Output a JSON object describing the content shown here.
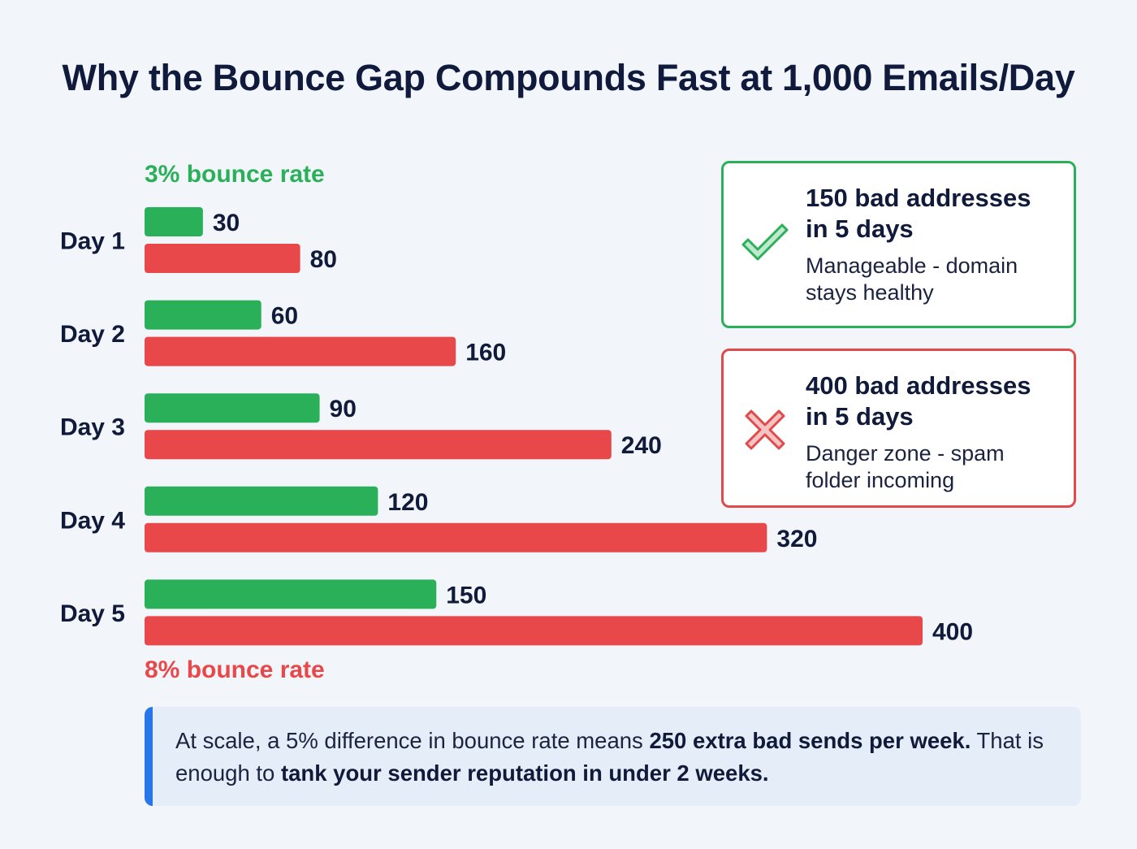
{
  "title": "Why the Bounce Gap Compounds Fast at 1,000 Emails/Day",
  "chart_data": {
    "type": "bar",
    "orientation": "horizontal",
    "categories": [
      "Day 1",
      "Day 2",
      "Day 3",
      "Day 4",
      "Day 5"
    ],
    "series": [
      {
        "name": "3% bounce rate",
        "color": "#2bb05a",
        "values": [
          30,
          60,
          90,
          120,
          150
        ]
      },
      {
        "name": "8% bounce rate",
        "color": "#e8484a",
        "values": [
          80,
          160,
          240,
          320,
          400
        ]
      }
    ],
    "xlim": [
      0,
      400
    ],
    "grid": false,
    "data_labels": true
  },
  "cards": [
    {
      "headline_1": "150 bad addresses",
      "headline_2": "in 5 days",
      "sub_1": "Manageable - domain",
      "sub_2": "stays healthy",
      "icon": "check-icon",
      "color": "#2bb05a"
    },
    {
      "headline_1": "400 bad addresses",
      "headline_2": "in 5 days",
      "sub_1": "Danger zone - spam",
      "sub_2": "folder incoming",
      "icon": "x-icon",
      "color": "#e04a4a"
    }
  ],
  "callout": {
    "part1": "At scale, a 5% difference in bounce rate means ",
    "bold1": "250 extra bad sends per week.",
    "part2": " That is enough to ",
    "bold2": "tank your sender reputation in under 2 weeks.",
    "accent": "#2777ea"
  }
}
